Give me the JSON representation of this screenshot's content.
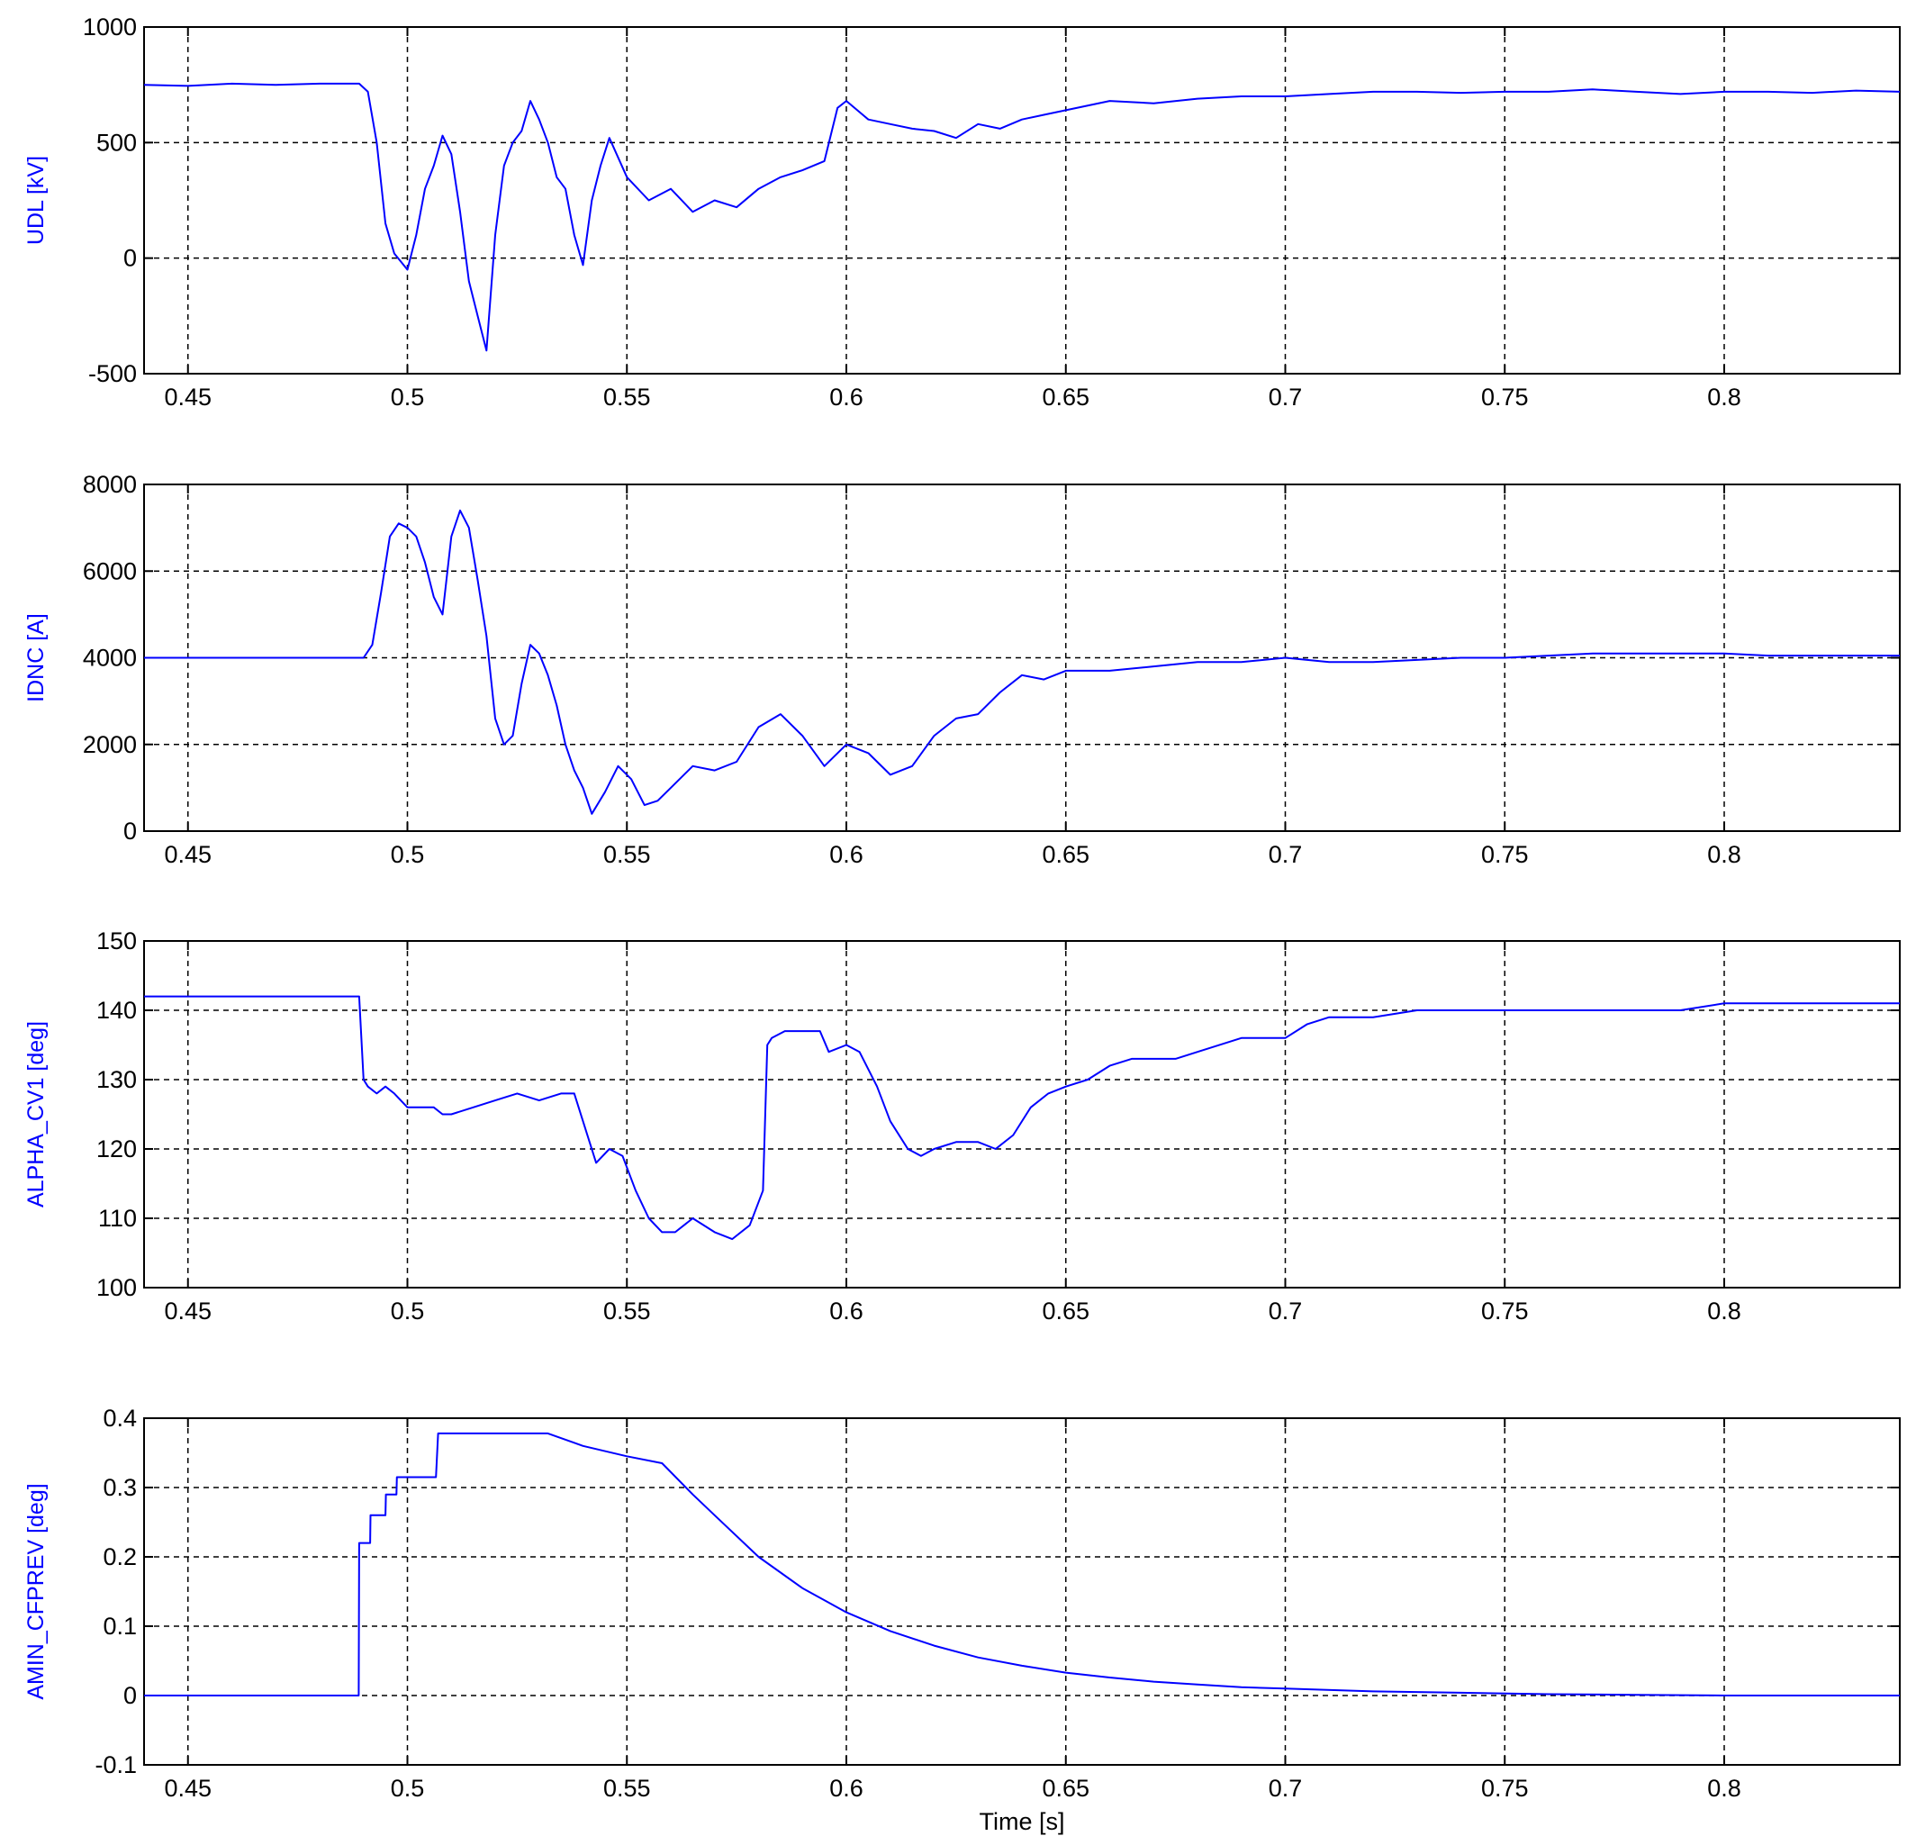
{
  "colors": {
    "line": "#0000ff",
    "ylabel": "#0000ff",
    "axes": "#000000"
  },
  "chart_data": [
    {
      "type": "line",
      "ylabel": "UDL [kV]",
      "xlabel": "",
      "xlim": [
        0.44,
        0.84
      ],
      "ylim": [
        -500,
        1000
      ],
      "xticks": [
        "0.45",
        "0.5",
        "0.55",
        "0.6",
        "0.65",
        "0.7",
        "0.75",
        "0.8"
      ],
      "yticks": [
        "-500",
        "0",
        "500",
        "1000"
      ],
      "grid": true,
      "series": [
        {
          "x": [
            0.44,
            0.45,
            0.46,
            0.47,
            0.48,
            0.489,
            0.491,
            0.493,
            0.495,
            0.497,
            0.5,
            0.502,
            0.504,
            0.506,
            0.508,
            0.51,
            0.512,
            0.514,
            0.516,
            0.518,
            0.52,
            0.522,
            0.524,
            0.526,
            0.528,
            0.53,
            0.532,
            0.534,
            0.536,
            0.538,
            0.54,
            0.542,
            0.544,
            0.546,
            0.55,
            0.555,
            0.56,
            0.565,
            0.57,
            0.575,
            0.58,
            0.585,
            0.59,
            0.595,
            0.598,
            0.6,
            0.605,
            0.61,
            0.615,
            0.62,
            0.625,
            0.63,
            0.635,
            0.64,
            0.645,
            0.65,
            0.66,
            0.67,
            0.68,
            0.69,
            0.7,
            0.71,
            0.72,
            0.73,
            0.74,
            0.75,
            0.76,
            0.77,
            0.78,
            0.79,
            0.8,
            0.81,
            0.82,
            0.83,
            0.84
          ],
          "y": [
            750,
            745,
            755,
            750,
            755,
            755,
            720,
            500,
            150,
            20,
            -50,
            100,
            300,
            400,
            530,
            450,
            200,
            -100,
            -250,
            -400,
            100,
            400,
            500,
            550,
            680,
            600,
            500,
            350,
            300,
            100,
            -30,
            250,
            400,
            520,
            350,
            250,
            300,
            200,
            250,
            220,
            300,
            350,
            380,
            420,
            650,
            680,
            600,
            580,
            560,
            550,
            520,
            580,
            560,
            600,
            620,
            640,
            680,
            670,
            690,
            700,
            700,
            710,
            720,
            720,
            715,
            720,
            720,
            730,
            720,
            710,
            720,
            720,
            715,
            725,
            720
          ]
        }
      ]
    },
    {
      "type": "line",
      "ylabel": "IDNC [A]",
      "xlabel": "",
      "xlim": [
        0.44,
        0.84
      ],
      "ylim": [
        0,
        8000
      ],
      "xticks": [
        "0.45",
        "0.5",
        "0.55",
        "0.6",
        "0.65",
        "0.7",
        "0.75",
        "0.8"
      ],
      "yticks": [
        "0",
        "2000",
        "4000",
        "6000",
        "8000"
      ],
      "grid": true,
      "series": [
        {
          "x": [
            0.44,
            0.45,
            0.46,
            0.47,
            0.48,
            0.49,
            0.492,
            0.494,
            0.496,
            0.498,
            0.5,
            0.502,
            0.504,
            0.506,
            0.508,
            0.51,
            0.512,
            0.514,
            0.516,
            0.518,
            0.52,
            0.522,
            0.524,
            0.526,
            0.528,
            0.53,
            0.532,
            0.534,
            0.536,
            0.538,
            0.54,
            0.542,
            0.545,
            0.548,
            0.551,
            0.554,
            0.557,
            0.56,
            0.565,
            0.57,
            0.575,
            0.58,
            0.585,
            0.59,
            0.595,
            0.6,
            0.605,
            0.61,
            0.615,
            0.62,
            0.625,
            0.63,
            0.635,
            0.64,
            0.645,
            0.65,
            0.66,
            0.67,
            0.68,
            0.69,
            0.7,
            0.71,
            0.72,
            0.73,
            0.74,
            0.75,
            0.76,
            0.77,
            0.78,
            0.79,
            0.8,
            0.81,
            0.82,
            0.83,
            0.84
          ],
          "y": [
            4000,
            4000,
            4000,
            4000,
            4000,
            4000,
            4300,
            5500,
            6800,
            7100,
            7000,
            6800,
            6200,
            5400,
            5000,
            6800,
            7400,
            7000,
            5800,
            4500,
            2600,
            2000,
            2200,
            3400,
            4300,
            4100,
            3600,
            2900,
            2000,
            1400,
            1000,
            400,
            900,
            1500,
            1200,
            600,
            700,
            1000,
            1500,
            1400,
            1600,
            2400,
            2700,
            2200,
            1500,
            2000,
            1800,
            1300,
            1500,
            2200,
            2600,
            2700,
            3200,
            3600,
            3500,
            3700,
            3700,
            3800,
            3900,
            3900,
            4000,
            3900,
            3900,
            3950,
            4000,
            4000,
            4050,
            4100,
            4100,
            4100,
            4100,
            4050,
            4050,
            4050,
            4050
          ]
        }
      ]
    },
    {
      "type": "line",
      "ylabel": "ALPHA_CV1 [deg]",
      "xlabel": "",
      "xlim": [
        0.44,
        0.84
      ],
      "ylim": [
        100,
        150
      ],
      "xticks": [
        "0.45",
        "0.5",
        "0.55",
        "0.6",
        "0.65",
        "0.7",
        "0.75",
        "0.8"
      ],
      "yticks": [
        "100",
        "110",
        "120",
        "130",
        "140",
        "150"
      ],
      "grid": true,
      "series": [
        {
          "x": [
            0.44,
            0.45,
            0.46,
            0.47,
            0.48,
            0.489,
            0.49,
            0.491,
            0.493,
            0.495,
            0.497,
            0.5,
            0.503,
            0.506,
            0.508,
            0.51,
            0.515,
            0.52,
            0.525,
            0.53,
            0.535,
            0.538,
            0.54,
            0.543,
            0.546,
            0.549,
            0.552,
            0.555,
            0.558,
            0.561,
            0.565,
            0.57,
            0.574,
            0.578,
            0.581,
            0.582,
            0.583,
            0.586,
            0.59,
            0.594,
            0.596,
            0.6,
            0.603,
            0.607,
            0.61,
            0.614,
            0.617,
            0.62,
            0.625,
            0.63,
            0.634,
            0.638,
            0.642,
            0.646,
            0.65,
            0.655,
            0.66,
            0.665,
            0.67,
            0.675,
            0.68,
            0.69,
            0.7,
            0.705,
            0.71,
            0.72,
            0.73,
            0.74,
            0.75,
            0.76,
            0.77,
            0.78,
            0.79,
            0.8,
            0.81,
            0.82,
            0.83,
            0.84
          ],
          "y": [
            142,
            142,
            142,
            142,
            142,
            142,
            130,
            129,
            128,
            129,
            128,
            126,
            126,
            126,
            125,
            125,
            126,
            127,
            128,
            127,
            128,
            128,
            124,
            118,
            120,
            119,
            114,
            110,
            108,
            108,
            110,
            108,
            107,
            109,
            114,
            135,
            136,
            137,
            137,
            137,
            134,
            135,
            134,
            129,
            124,
            120,
            119,
            120,
            121,
            121,
            120,
            122,
            126,
            128,
            129,
            130,
            132,
            133,
            133,
            133,
            134,
            136,
            136,
            138,
            139,
            139,
            140,
            140,
            140,
            140,
            140,
            140,
            140,
            141,
            141,
            141,
            141,
            141
          ]
        }
      ]
    },
    {
      "type": "line",
      "ylabel": "AMIN_CFPREV [deg]",
      "xlabel": "Time [s]",
      "xlim": [
        0.44,
        0.84
      ],
      "ylim": [
        -0.1,
        0.4
      ],
      "xticks": [
        "0.45",
        "0.5",
        "0.55",
        "0.6",
        "0.65",
        "0.7",
        "0.75",
        "0.8"
      ],
      "yticks": [
        "-0.1",
        "0",
        "0.1",
        "0.2",
        "0.3",
        "0.4"
      ],
      "grid": true,
      "series": [
        {
          "x": [
            0.44,
            0.45,
            0.46,
            0.47,
            0.48,
            0.4889,
            0.489,
            0.49,
            0.4915,
            0.4916,
            0.495,
            0.4951,
            0.4975,
            0.4976,
            0.5,
            0.505,
            0.5065,
            0.507,
            0.515,
            0.52,
            0.53,
            0.532,
            0.54,
            0.55,
            0.558,
            0.565,
            0.57,
            0.58,
            0.59,
            0.6,
            0.61,
            0.62,
            0.63,
            0.64,
            0.65,
            0.66,
            0.67,
            0.68,
            0.69,
            0.7,
            0.72,
            0.74,
            0.76,
            0.78,
            0.8,
            0.82,
            0.84
          ],
          "y": [
            0,
            0,
            0,
            0,
            0,
            0,
            0.22,
            0.22,
            0.22,
            0.26,
            0.26,
            0.29,
            0.29,
            0.315,
            0.315,
            0.315,
            0.315,
            0.378,
            0.378,
            0.378,
            0.378,
            0.378,
            0.36,
            0.345,
            0.335,
            0.29,
            0.26,
            0.2,
            0.155,
            0.12,
            0.093,
            0.072,
            0.055,
            0.043,
            0.033,
            0.026,
            0.02,
            0.016,
            0.012,
            0.01,
            0.006,
            0.004,
            0.002,
            0.001,
            0,
            0,
            0
          ]
        }
      ]
    }
  ]
}
